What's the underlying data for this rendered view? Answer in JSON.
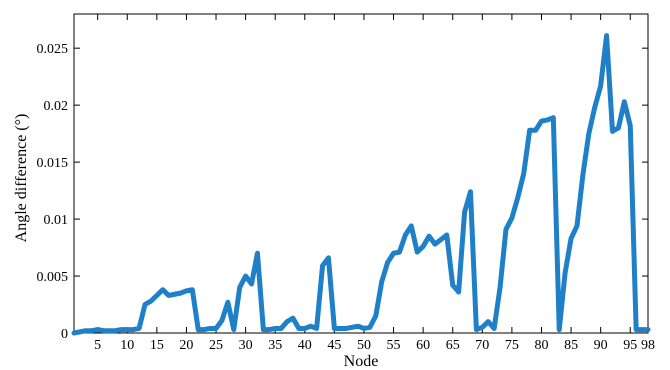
{
  "chart_data": {
    "type": "line",
    "title": "",
    "xlabel": "Node",
    "ylabel": "Angle difference (°)",
    "xlim": [
      1,
      98
    ],
    "ylim": [
      0,
      0.028
    ],
    "grid": false,
    "x_ticks": [
      5,
      10,
      15,
      20,
      25,
      30,
      35,
      40,
      45,
      50,
      55,
      60,
      65,
      70,
      75,
      80,
      85,
      90,
      95,
      98
    ],
    "y_ticks": [
      0,
      0.005,
      0.01,
      0.015,
      0.02,
      0.025
    ],
    "y_tick_labels": [
      "0",
      "0.005",
      "0.01",
      "0.015",
      "0.02",
      "0.025"
    ],
    "line_color": "#1f80c8",
    "series": [
      {
        "x": [
          1,
          2,
          3,
          4,
          5,
          6,
          7,
          8,
          9,
          10,
          11,
          12,
          13,
          14,
          15,
          16,
          17,
          18,
          19,
          20,
          21,
          22,
          23,
          24,
          25,
          26,
          27,
          28,
          29,
          30,
          31,
          32,
          33,
          34,
          35,
          36,
          37,
          38,
          39,
          40,
          41,
          42,
          43,
          44,
          45,
          46,
          47,
          48,
          49,
          50,
          51,
          52,
          53,
          54,
          55,
          56,
          57,
          58,
          59,
          60,
          61,
          62,
          63,
          64,
          65,
          66,
          67,
          68,
          69,
          70,
          71,
          72,
          73,
          74,
          75,
          76,
          77,
          78,
          79,
          80,
          81,
          82,
          83,
          84,
          85,
          86,
          87,
          88,
          89,
          90,
          91,
          92,
          93,
          94,
          95,
          96,
          97,
          98
        ],
        "values": [
          0.0,
          0.0001,
          0.0002,
          0.0002,
          0.0003,
          0.0002,
          0.0002,
          0.0002,
          0.0003,
          0.0003,
          0.0003,
          0.0004,
          0.0025,
          0.0028,
          0.0033,
          0.0038,
          0.0033,
          0.0034,
          0.0035,
          0.0037,
          0.0038,
          0.0003,
          0.0003,
          0.0004,
          0.0004,
          0.0011,
          0.0027,
          0.0003,
          0.004,
          0.005,
          0.0043,
          0.007,
          0.0003,
          0.0003,
          0.0004,
          0.0004,
          0.001,
          0.0013,
          0.0004,
          0.0004,
          0.0006,
          0.0004,
          0.0059,
          0.0066,
          0.0004,
          0.0004,
          0.0004,
          0.0005,
          0.0006,
          0.0004,
          0.0005,
          0.0015,
          0.0045,
          0.0062,
          0.007,
          0.0071,
          0.0086,
          0.0094,
          0.0071,
          0.0076,
          0.0085,
          0.0078,
          0.0082,
          0.0086,
          0.0042,
          0.0036,
          0.0106,
          0.0124,
          0.0003,
          0.0005,
          0.001,
          0.0004,
          0.004,
          0.0091,
          0.0101,
          0.0119,
          0.014,
          0.0178,
          0.0178,
          0.0186,
          0.0187,
          0.0189,
          0.0003,
          0.0053,
          0.0083,
          0.0094,
          0.0139,
          0.0175,
          0.0198,
          0.0217,
          0.0261,
          0.0177,
          0.018,
          0.0203,
          0.0182,
          0.0003,
          0.0003,
          0.0003
        ]
      }
    ]
  }
}
